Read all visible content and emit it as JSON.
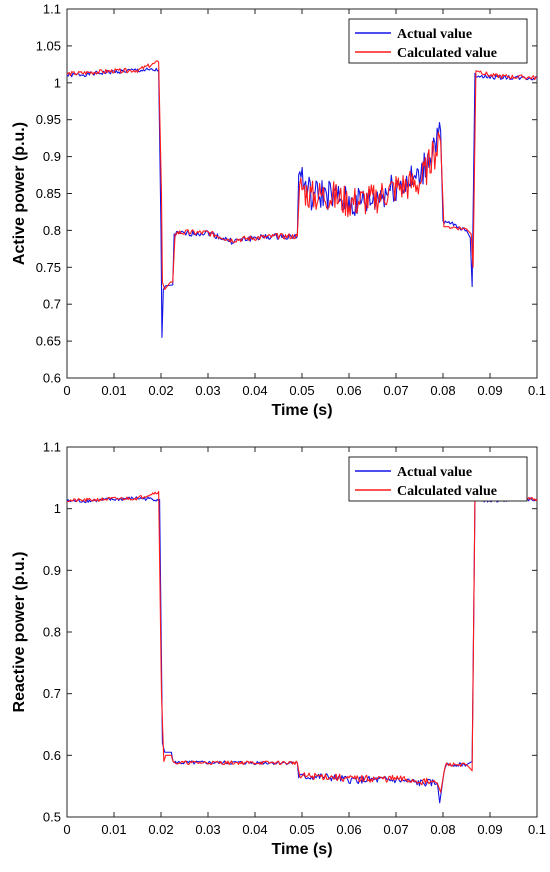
{
  "colors": {
    "actual": "#1414e6",
    "calculated": "#ff1a1a"
  },
  "chart_data": [
    {
      "type": "line",
      "xlabel": "Time (s)",
      "ylabel": "Active power (p.u.)",
      "xlim": [
        0,
        0.1
      ],
      "ylim": [
        0.6,
        1.1
      ],
      "xticks": [
        "0",
        "0.01",
        "0.02",
        "0.03",
        "0.04",
        "0.05",
        "0.06",
        "0.07",
        "0.08",
        "0.09",
        "0.1"
      ],
      "yticks": [
        "0.6",
        "0.65",
        "0.7",
        "0.75",
        "0.8",
        "0.85",
        "0.9",
        "0.95",
        "1",
        "1.05",
        "1.1"
      ],
      "legend": {
        "position": "top-right",
        "entries": [
          "Actual  value",
          "Calculated  value"
        ]
      },
      "grid": false,
      "series": [
        {
          "name": "Actual  value",
          "color": "#1414e6",
          "x": [
            0,
            0.005,
            0.01,
            0.015,
            0.0195,
            0.02,
            0.0202,
            0.0205,
            0.021,
            0.0225,
            0.0228,
            0.03,
            0.035,
            0.04,
            0.045,
            0.049,
            0.0493,
            0.052,
            0.055,
            0.06,
            0.065,
            0.07,
            0.075,
            0.0795,
            0.08,
            0.0815,
            0.085,
            0.0858,
            0.0862,
            0.0868,
            0.09,
            0.095,
            0.1
          ],
          "y": [
            1.01,
            1.012,
            1.015,
            1.017,
            1.017,
            0.8,
            0.655,
            0.72,
            0.725,
            0.726,
            0.795,
            0.797,
            0.785,
            0.79,
            0.792,
            0.792,
            0.877,
            0.845,
            0.85,
            0.835,
            0.84,
            0.86,
            0.87,
            0.935,
            0.81,
            0.81,
            0.8,
            0.79,
            0.724,
            1.01,
            1.008,
            1.007,
            1.006
          ]
        },
        {
          "name": "Calculated  value",
          "color": "#ff1a1a",
          "x": [
            0,
            0.005,
            0.01,
            0.015,
            0.0195,
            0.0201,
            0.0203,
            0.0208,
            0.022,
            0.0225,
            0.023,
            0.03,
            0.035,
            0.04,
            0.045,
            0.049,
            0.0495,
            0.052,
            0.055,
            0.06,
            0.065,
            0.07,
            0.075,
            0.0795,
            0.0802,
            0.0815,
            0.085,
            0.086,
            0.0864,
            0.087,
            0.09,
            0.095,
            0.1
          ],
          "y": [
            1.012,
            1.014,
            1.016,
            1.017,
            1.028,
            0.85,
            0.73,
            0.72,
            0.73,
            0.73,
            0.797,
            0.797,
            0.787,
            0.79,
            0.792,
            0.792,
            0.86,
            0.845,
            0.848,
            0.838,
            0.842,
            0.858,
            0.865,
            0.92,
            0.805,
            0.805,
            0.802,
            0.795,
            0.75,
            1.018,
            1.01,
            1.008,
            1.007
          ]
        }
      ]
    },
    {
      "type": "line",
      "xlabel": "Time (s)",
      "ylabel": "Reactive power (p.u.)",
      "xlim": [
        0,
        0.1
      ],
      "ylim": [
        0.5,
        1.1
      ],
      "xticks": [
        "0",
        "0.01",
        "0.02",
        "0.03",
        "0.04",
        "0.05",
        "0.06",
        "0.07",
        "0.08",
        "0.09",
        "0.1"
      ],
      "yticks": [
        "0.5",
        "0.6",
        "0.7",
        "0.8",
        "0.9",
        "1",
        "1.1"
      ],
      "legend": {
        "position": "top-right",
        "entries": [
          "Actual  value",
          "Calculated  value"
        ]
      },
      "grid": false,
      "series": [
        {
          "name": "Actual  value",
          "color": "#1414e6",
          "x": [
            0,
            0.005,
            0.01,
            0.015,
            0.0197,
            0.0203,
            0.0208,
            0.0222,
            0.0226,
            0.03,
            0.035,
            0.04,
            0.045,
            0.049,
            0.0493,
            0.055,
            0.06,
            0.065,
            0.07,
            0.075,
            0.0788,
            0.0793,
            0.0797,
            0.0802,
            0.0806,
            0.085,
            0.0862,
            0.0868,
            0.09,
            0.095,
            0.1
          ],
          "y": [
            1.012,
            1.013,
            1.015,
            1.017,
            1.015,
            0.62,
            0.605,
            0.605,
            0.588,
            0.588,
            0.588,
            0.588,
            0.588,
            0.588,
            0.565,
            0.565,
            0.56,
            0.56,
            0.56,
            0.555,
            0.555,
            0.523,
            0.545,
            0.572,
            0.585,
            0.585,
            0.59,
            1.015,
            1.013,
            1.015,
            1.016
          ]
        },
        {
          "name": "Calculated  value",
          "color": "#ff1a1a",
          "x": [
            0,
            0.005,
            0.01,
            0.015,
            0.0195,
            0.0201,
            0.0206,
            0.021,
            0.0222,
            0.0226,
            0.03,
            0.035,
            0.04,
            0.045,
            0.049,
            0.0495,
            0.055,
            0.06,
            0.065,
            0.07,
            0.075,
            0.0788,
            0.0795,
            0.0805,
            0.085,
            0.0862,
            0.0868,
            0.0873,
            0.09,
            0.095,
            0.1
          ],
          "y": [
            1.013,
            1.014,
            1.016,
            1.017,
            1.028,
            0.7,
            0.59,
            0.6,
            0.6,
            0.588,
            0.588,
            0.588,
            0.588,
            0.588,
            0.588,
            0.566,
            0.566,
            0.562,
            0.562,
            0.562,
            0.558,
            0.555,
            0.54,
            0.585,
            0.585,
            0.575,
            1.02,
            1.03,
            1.015,
            1.016,
            1.016
          ]
        }
      ]
    }
  ]
}
